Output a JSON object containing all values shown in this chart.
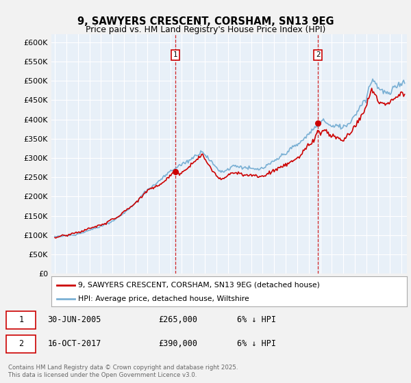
{
  "title": "9, SAWYERS CRESCENT, CORSHAM, SN13 9EG",
  "subtitle": "Price paid vs. HM Land Registry's House Price Index (HPI)",
  "ylim": [
    0,
    620000
  ],
  "xlim_start": 1994.7,
  "xlim_end": 2025.5,
  "background_color": "#e8f0f8",
  "grid_color": "#ffffff",
  "red_line_color": "#cc0000",
  "blue_line_color": "#7ab0d4",
  "marker1_x": 2005.46,
  "marker2_x": 2017.79,
  "marker1_y": 265000,
  "marker2_y": 390000,
  "legend_line1": "9, SAWYERS CRESCENT, CORSHAM, SN13 9EG (detached house)",
  "legend_line2": "HPI: Average price, detached house, Wiltshire",
  "footer": "Contains HM Land Registry data © Crown copyright and database right 2025.\nThis data is licensed under the Open Government Licence v3.0."
}
